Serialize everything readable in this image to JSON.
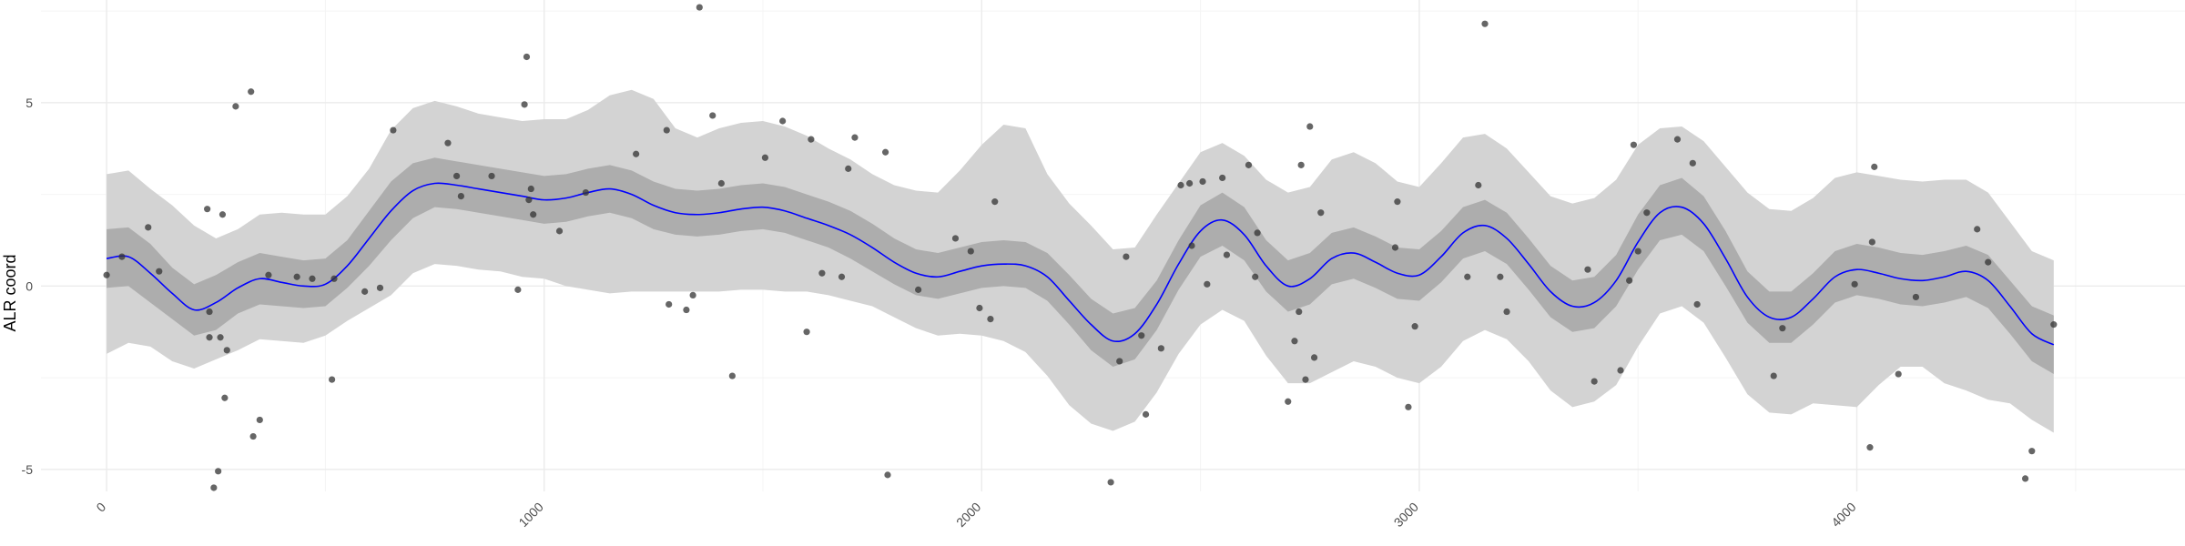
{
  "chart_data": {
    "type": "scatter",
    "title": "",
    "xlabel": "",
    "ylabel": "ALR coord",
    "xlim": [
      -150,
      4750
    ],
    "ylim": [
      -5.6,
      7.8
    ],
    "x_ticks": [
      "0",
      "1000",
      "2000",
      "3000",
      "4000"
    ],
    "x_tick_values": [
      0,
      1000,
      2000,
      3000,
      4000
    ],
    "y_ticks": [
      "-5",
      "0",
      "5"
    ],
    "y_tick_values": [
      -5,
      0,
      5
    ],
    "grid": true,
    "colors": {
      "background": "#ffffff",
      "grid_major": "#ebebeb",
      "grid_minor": "#f4f4f4",
      "outer_band": "#d3d3d3",
      "inner_band": "#adadad",
      "mean_line": "#0000ff",
      "points": "#333333"
    },
    "mean_curve": {
      "x": [
        0,
        50,
        100,
        150,
        200,
        250,
        300,
        350,
        400,
        450,
        500,
        550,
        600,
        650,
        700,
        750,
        800,
        850,
        900,
        950,
        1000,
        1050,
        1100,
        1150,
        1200,
        1250,
        1300,
        1350,
        1400,
        1450,
        1500,
        1550,
        1600,
        1650,
        1700,
        1750,
        1800,
        1850,
        1900,
        1950,
        2000,
        2050,
        2100,
        2150,
        2200,
        2250,
        2300,
        2350,
        2400,
        2450,
        2500,
        2550,
        2600,
        2650,
        2700,
        2750,
        2800,
        2850,
        2900,
        2950,
        3000,
        3050,
        3100,
        3150,
        3200,
        3250,
        3300,
        3350,
        3400,
        3450,
        3500,
        3550,
        3600,
        3650,
        3700,
        3750,
        3800,
        3850,
        3900,
        3950,
        4000,
        4050,
        4100,
        4150,
        4200,
        4250,
        4300,
        4350,
        4400,
        4450
      ],
      "y": [
        0.75,
        0.8,
        0.35,
        -0.2,
        -0.65,
        -0.45,
        -0.05,
        0.2,
        0.1,
        0.0,
        0.05,
        0.55,
        1.3,
        2.05,
        2.6,
        2.8,
        2.75,
        2.65,
        2.55,
        2.45,
        2.35,
        2.4,
        2.55,
        2.65,
        2.5,
        2.2,
        2.0,
        1.95,
        2.0,
        2.1,
        2.15,
        2.05,
        1.85,
        1.65,
        1.4,
        1.05,
        0.65,
        0.35,
        0.25,
        0.4,
        0.55,
        0.6,
        0.55,
        0.25,
        -0.4,
        -1.05,
        -1.5,
        -1.3,
        -0.5,
        0.6,
        1.5,
        1.8,
        1.4,
        0.55,
        0.0,
        0.2,
        0.75,
        0.9,
        0.65,
        0.35,
        0.3,
        0.8,
        1.45,
        1.65,
        1.3,
        0.6,
        -0.15,
        -0.55,
        -0.45,
        0.15,
        1.2,
        2.0,
        2.15,
        1.7,
        0.75,
        -0.3,
        -0.85,
        -0.85,
        -0.35,
        0.25,
        0.45,
        0.35,
        0.2,
        0.15,
        0.25,
        0.4,
        0.15,
        -0.55,
        -1.3,
        -1.6
      ]
    },
    "inner_band": {
      "lower": [
        -0.05,
        0.0,
        -0.45,
        -0.9,
        -1.35,
        -1.2,
        -0.75,
        -0.5,
        -0.55,
        -0.6,
        -0.55,
        -0.05,
        0.55,
        1.25,
        1.85,
        2.15,
        2.1,
        2.0,
        1.9,
        1.8,
        1.7,
        1.75,
        1.9,
        2.0,
        1.85,
        1.55,
        1.4,
        1.35,
        1.4,
        1.5,
        1.55,
        1.45,
        1.25,
        1.05,
        0.75,
        0.4,
        0.05,
        -0.25,
        -0.35,
        -0.2,
        -0.05,
        0.0,
        -0.05,
        -0.4,
        -1.05,
        -1.75,
        -2.2,
        -2.0,
        -1.2,
        -0.1,
        0.8,
        1.1,
        0.7,
        -0.15,
        -0.7,
        -0.5,
        0.05,
        0.2,
        -0.05,
        -0.35,
        -0.4,
        0.1,
        0.75,
        0.95,
        0.6,
        -0.1,
        -0.85,
        -1.25,
        -1.15,
        -0.55,
        0.45,
        1.25,
        1.4,
        0.95,
        0.0,
        -1.0,
        -1.55,
        -1.55,
        -1.05,
        -0.45,
        -0.25,
        -0.35,
        -0.5,
        -0.55,
        -0.45,
        -0.3,
        -0.6,
        -1.3,
        -2.05,
        -2.4
      ],
      "upper": [
        1.55,
        1.6,
        1.15,
        0.5,
        0.05,
        0.3,
        0.65,
        0.9,
        0.8,
        0.7,
        0.75,
        1.25,
        2.05,
        2.85,
        3.35,
        3.5,
        3.4,
        3.3,
        3.2,
        3.1,
        3.0,
        3.05,
        3.2,
        3.3,
        3.15,
        2.85,
        2.65,
        2.6,
        2.65,
        2.75,
        2.8,
        2.7,
        2.5,
        2.3,
        2.05,
        1.7,
        1.3,
        1.0,
        0.9,
        1.05,
        1.2,
        1.25,
        1.2,
        0.9,
        0.3,
        -0.35,
        -0.75,
        -0.6,
        0.15,
        1.25,
        2.2,
        2.55,
        2.15,
        1.25,
        0.7,
        0.9,
        1.45,
        1.6,
        1.35,
        1.05,
        1.0,
        1.5,
        2.15,
        2.35,
        2.0,
        1.3,
        0.55,
        0.15,
        0.25,
        0.85,
        1.95,
        2.75,
        2.95,
        2.45,
        1.5,
        0.4,
        -0.15,
        -0.15,
        0.35,
        0.95,
        1.15,
        1.05,
        0.9,
        0.85,
        0.95,
        1.1,
        0.85,
        0.15,
        -0.55,
        -0.8
      ]
    },
    "outer_band": {
      "lower": [
        -1.85,
        -1.55,
        -1.65,
        -2.05,
        -2.25,
        -2.0,
        -1.75,
        -1.45,
        -1.5,
        -1.55,
        -1.35,
        -0.95,
        -0.6,
        -0.25,
        0.35,
        0.6,
        0.55,
        0.45,
        0.4,
        0.25,
        0.2,
        0.0,
        -0.1,
        -0.2,
        -0.15,
        -0.15,
        -0.15,
        -0.15,
        -0.15,
        -0.1,
        -0.1,
        -0.15,
        -0.15,
        -0.25,
        -0.4,
        -0.55,
        -0.85,
        -1.15,
        -1.35,
        -1.3,
        -1.35,
        -1.5,
        -1.8,
        -2.45,
        -3.25,
        -3.75,
        -3.95,
        -3.7,
        -2.9,
        -1.85,
        -1.05,
        -0.65,
        -0.95,
        -1.9,
        -2.65,
        -2.65,
        -2.35,
        -2.05,
        -2.2,
        -2.5,
        -2.65,
        -2.2,
        -1.5,
        -1.2,
        -1.45,
        -2.05,
        -2.85,
        -3.3,
        -3.15,
        -2.7,
        -1.65,
        -0.75,
        -0.55,
        -1.0,
        -1.95,
        -2.95,
        -3.45,
        -3.5,
        -3.2,
        -3.25,
        -3.3,
        -2.7,
        -2.2,
        -2.2,
        -2.65,
        -2.85,
        -3.1,
        -3.2,
        -3.65,
        -4.0
      ],
      "upper": [
        3.05,
        3.15,
        2.65,
        2.2,
        1.65,
        1.3,
        1.55,
        1.95,
        2.0,
        1.95,
        1.95,
        2.45,
        3.2,
        4.25,
        4.85,
        5.05,
        4.9,
        4.7,
        4.6,
        4.5,
        4.55,
        4.55,
        4.8,
        5.2,
        5.35,
        5.1,
        4.3,
        4.05,
        4.3,
        4.45,
        4.5,
        4.35,
        4.1,
        3.75,
        3.45,
        3.05,
        2.75,
        2.6,
        2.55,
        3.15,
        3.85,
        4.4,
        4.3,
        3.05,
        2.25,
        1.65,
        1.0,
        1.05,
        1.95,
        2.8,
        3.65,
        3.9,
        3.55,
        2.9,
        2.55,
        2.7,
        3.45,
        3.65,
        3.35,
        2.85,
        2.7,
        3.35,
        4.05,
        4.15,
        3.75,
        3.1,
        2.45,
        2.25,
        2.4,
        2.9,
        3.85,
        4.3,
        4.35,
        3.95,
        3.25,
        2.55,
        2.1,
        2.05,
        2.4,
        2.95,
        3.1,
        3.0,
        2.9,
        2.85,
        2.9,
        2.9,
        2.55,
        1.75,
        0.95,
        0.7
      ]
    },
    "points": [
      {
        "x": 0,
        "y": 0.3
      },
      {
        "x": 35,
        "y": 0.8
      },
      {
        "x": 95,
        "y": 1.6
      },
      {
        "x": 120,
        "y": 0.4
      },
      {
        "x": 230,
        "y": 2.1
      },
      {
        "x": 235,
        "y": -0.7
      },
      {
        "x": 235,
        "y": -1.4
      },
      {
        "x": 245,
        "y": -5.5
      },
      {
        "x": 255,
        "y": -5.05
      },
      {
        "x": 260,
        "y": -1.4
      },
      {
        "x": 265,
        "y": 1.95
      },
      {
        "x": 270,
        "y": -3.05
      },
      {
        "x": 275,
        "y": -1.75
      },
      {
        "x": 295,
        "y": 4.9
      },
      {
        "x": 330,
        "y": 5.3
      },
      {
        "x": 335,
        "y": -4.1
      },
      {
        "x": 350,
        "y": -3.65
      },
      {
        "x": 370,
        "y": 0.3
      },
      {
        "x": 435,
        "y": 0.25
      },
      {
        "x": 470,
        "y": 0.2
      },
      {
        "x": 515,
        "y": -2.55
      },
      {
        "x": 520,
        "y": 0.2
      },
      {
        "x": 590,
        "y": -0.15
      },
      {
        "x": 625,
        "y": -0.05
      },
      {
        "x": 655,
        "y": 4.25
      },
      {
        "x": 780,
        "y": 3.9
      },
      {
        "x": 800,
        "y": 3.0
      },
      {
        "x": 810,
        "y": 2.45
      },
      {
        "x": 880,
        "y": 3.0
      },
      {
        "x": 940,
        "y": -0.1
      },
      {
        "x": 955,
        "y": 4.95
      },
      {
        "x": 960,
        "y": 6.25
      },
      {
        "x": 965,
        "y": 2.35
      },
      {
        "x": 970,
        "y": 2.65
      },
      {
        "x": 975,
        "y": 1.95
      },
      {
        "x": 1035,
        "y": 1.5
      },
      {
        "x": 1095,
        "y": 2.55
      },
      {
        "x": 1210,
        "y": 3.6
      },
      {
        "x": 1280,
        "y": 4.25
      },
      {
        "x": 1285,
        "y": -0.5
      },
      {
        "x": 1325,
        "y": -0.65
      },
      {
        "x": 1340,
        "y": -0.25
      },
      {
        "x": 1355,
        "y": 7.6
      },
      {
        "x": 1385,
        "y": 4.65
      },
      {
        "x": 1405,
        "y": 2.8
      },
      {
        "x": 1430,
        "y": -2.45
      },
      {
        "x": 1505,
        "y": 3.5
      },
      {
        "x": 1545,
        "y": 4.5
      },
      {
        "x": 1600,
        "y": -1.25
      },
      {
        "x": 1610,
        "y": 4.0
      },
      {
        "x": 1635,
        "y": 0.35
      },
      {
        "x": 1680,
        "y": 0.25
      },
      {
        "x": 1695,
        "y": 3.2
      },
      {
        "x": 1710,
        "y": 4.05
      },
      {
        "x": 1780,
        "y": 3.65
      },
      {
        "x": 1785,
        "y": -5.15
      },
      {
        "x": 1855,
        "y": -0.1
      },
      {
        "x": 1940,
        "y": 1.3
      },
      {
        "x": 1975,
        "y": 0.95
      },
      {
        "x": 1995,
        "y": -0.6
      },
      {
        "x": 2020,
        "y": -0.9
      },
      {
        "x": 2030,
        "y": 2.3
      },
      {
        "x": 2295,
        "y": -5.35
      },
      {
        "x": 2315,
        "y": -2.05
      },
      {
        "x": 2330,
        "y": 0.8
      },
      {
        "x": 2365,
        "y": -1.35
      },
      {
        "x": 2375,
        "y": -3.5
      },
      {
        "x": 2410,
        "y": -1.7
      },
      {
        "x": 2455,
        "y": 2.75
      },
      {
        "x": 2475,
        "y": 2.8
      },
      {
        "x": 2480,
        "y": 1.1
      },
      {
        "x": 2505,
        "y": 2.85
      },
      {
        "x": 2515,
        "y": 0.05
      },
      {
        "x": 2550,
        "y": 2.95
      },
      {
        "x": 2560,
        "y": 0.85
      },
      {
        "x": 2610,
        "y": 3.3
      },
      {
        "x": 2625,
        "y": 0.25
      },
      {
        "x": 2630,
        "y": 1.45
      },
      {
        "x": 2700,
        "y": -3.15
      },
      {
        "x": 2715,
        "y": -1.5
      },
      {
        "x": 2725,
        "y": -0.7
      },
      {
        "x": 2730,
        "y": 3.3
      },
      {
        "x": 2740,
        "y": -2.55
      },
      {
        "x": 2750,
        "y": 4.35
      },
      {
        "x": 2760,
        "y": -1.95
      },
      {
        "x": 2775,
        "y": 2.0
      },
      {
        "x": 2945,
        "y": 1.05
      },
      {
        "x": 2950,
        "y": 2.3
      },
      {
        "x": 2975,
        "y": -3.3
      },
      {
        "x": 2990,
        "y": -1.1
      },
      {
        "x": 3110,
        "y": 0.25
      },
      {
        "x": 3135,
        "y": 2.75
      },
      {
        "x": 3150,
        "y": 7.15
      },
      {
        "x": 3185,
        "y": 0.25
      },
      {
        "x": 3200,
        "y": -0.7
      },
      {
        "x": 3385,
        "y": 0.45
      },
      {
        "x": 3400,
        "y": -2.6
      },
      {
        "x": 3460,
        "y": -2.3
      },
      {
        "x": 3480,
        "y": 0.15
      },
      {
        "x": 3490,
        "y": 3.85
      },
      {
        "x": 3500,
        "y": 0.95
      },
      {
        "x": 3520,
        "y": 2.0
      },
      {
        "x": 3590,
        "y": 4.0
      },
      {
        "x": 3625,
        "y": 3.35
      },
      {
        "x": 3635,
        "y": -0.5
      },
      {
        "x": 3810,
        "y": -2.45
      },
      {
        "x": 3830,
        "y": -1.15
      },
      {
        "x": 3995,
        "y": 0.05
      },
      {
        "x": 4030,
        "y": -4.4
      },
      {
        "x": 4035,
        "y": 1.2
      },
      {
        "x": 4040,
        "y": 3.25
      },
      {
        "x": 4095,
        "y": -2.4
      },
      {
        "x": 4135,
        "y": -0.3
      },
      {
        "x": 4275,
        "y": 1.55
      },
      {
        "x": 4300,
        "y": 0.65
      },
      {
        "x": 4385,
        "y": -5.25
      },
      {
        "x": 4400,
        "y": -4.5
      },
      {
        "x": 4450,
        "y": -1.05
      }
    ]
  }
}
